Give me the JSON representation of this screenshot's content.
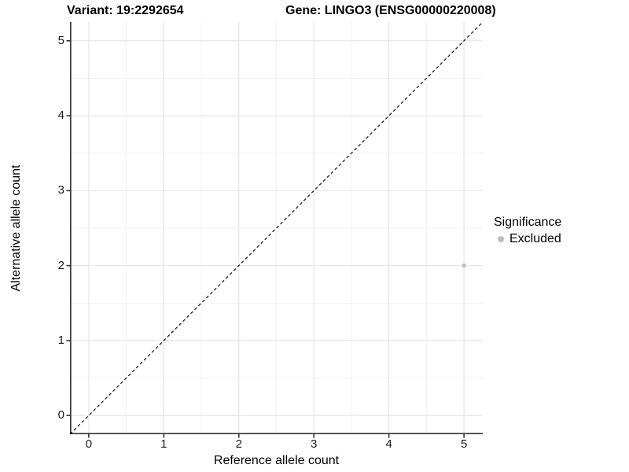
{
  "header": {
    "variant_title": "Variant: 19:2292654",
    "gene_title": "Gene: LINGO3 (ENSG00000220008)"
  },
  "legend": {
    "title": "Significance",
    "position": "right",
    "items": [
      {
        "label": "Excluded",
        "color": "#bdbdbd"
      }
    ]
  },
  "chart_data": {
    "type": "scatter",
    "xlabel": "Reference allele count",
    "ylabel": "Alternative allele count",
    "xlim": [
      -0.25,
      5.25
    ],
    "ylim": [
      -0.25,
      5.25
    ],
    "x_major_ticks": [
      0,
      1,
      2,
      3,
      4,
      5
    ],
    "y_major_ticks": [
      0,
      1,
      2,
      3,
      4,
      5
    ],
    "x_tick_labels": [
      "0",
      "1",
      "2",
      "3",
      "4",
      "5"
    ],
    "y_tick_labels": [
      "0",
      "1",
      "2",
      "3",
      "4",
      "5"
    ],
    "x_minor_ticks": [
      0.5,
      1.5,
      2.5,
      3.5,
      4.5
    ],
    "y_minor_ticks": [
      0.5,
      1.5,
      2.5,
      3.5,
      4.5
    ],
    "grid": true,
    "identity_line": {
      "style": "dashed",
      "from": [
        -0.25,
        -0.25
      ],
      "to": [
        5.25,
        5.25
      ],
      "color": "#000000"
    },
    "series": [
      {
        "name": "Excluded",
        "color": "#bdbdbd",
        "points": [
          {
            "x": 5,
            "y": 2
          }
        ]
      }
    ],
    "colors": {
      "grid_major": "#e3e3e3",
      "grid_minor": "#f1f1f1",
      "axis_line": "#333333",
      "tick_mark": "#333333"
    }
  }
}
